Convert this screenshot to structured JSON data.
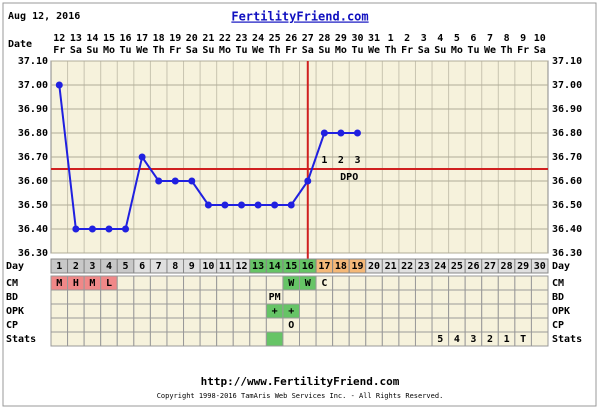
{
  "header": {
    "date": "Aug 12, 2016",
    "site": "FertilityFriend.com",
    "date_label": "Date"
  },
  "chart_data": {
    "type": "line",
    "categories": [
      "1",
      "2",
      "3",
      "4",
      "5",
      "6",
      "7",
      "8",
      "9",
      "10",
      "11",
      "12",
      "13",
      "14",
      "15",
      "16",
      "17",
      "18",
      "19",
      "20",
      "21",
      "22",
      "23",
      "24",
      "25",
      "26",
      "27",
      "28",
      "29",
      "30"
    ],
    "dates": [
      "12",
      "13",
      "14",
      "15",
      "16",
      "17",
      "18",
      "19",
      "20",
      "21",
      "22",
      "23",
      "24",
      "25",
      "26",
      "27",
      "28",
      "29",
      "30",
      "31",
      "1",
      "2",
      "3",
      "4",
      "5",
      "6",
      "7",
      "8",
      "9",
      "10"
    ],
    "weekdays": [
      "Fr",
      "Sa",
      "Su",
      "Mo",
      "Tu",
      "We",
      "Th",
      "Fr",
      "Sa",
      "Su",
      "Mo",
      "Tu",
      "We",
      "Th",
      "Fr",
      "Sa",
      "Su",
      "Mo",
      "Tu",
      "We",
      "Th",
      "Fr",
      "Sa",
      "Su",
      "Mo",
      "Tu",
      "We",
      "Th",
      "Fr",
      "Sa"
    ],
    "series": [
      {
        "name": "Temperature",
        "color": "#2020e0",
        "values": [
          37.0,
          36.4,
          36.4,
          36.4,
          36.4,
          36.7,
          36.6,
          36.6,
          36.6,
          36.5,
          36.5,
          36.5,
          36.5,
          36.5,
          36.5,
          36.6,
          36.8,
          36.8,
          36.8,
          null,
          null,
          null,
          null,
          null,
          null,
          null,
          null,
          null,
          null,
          null
        ]
      }
    ],
    "ylim": [
      36.3,
      37.1
    ],
    "yticks": [
      {
        "value": 36.3,
        "label": "36.30"
      },
      {
        "value": 36.4,
        "label": "36.40"
      },
      {
        "value": 36.5,
        "label": "36.50"
      },
      {
        "value": 36.6,
        "label": "36.60"
      },
      {
        "value": 36.7,
        "label": "36.70"
      },
      {
        "value": 36.8,
        "label": "36.80"
      },
      {
        "value": 36.9,
        "label": "36.90"
      },
      {
        "value": 37.0,
        "label": "37.00"
      },
      {
        "value": 37.1,
        "label": "37.10"
      }
    ],
    "grid": true,
    "coverline": 36.65,
    "coverline_color": "#d02020",
    "ovulation_day": 16,
    "dpo_start_day": 17,
    "dpo_labels": [
      "1",
      "2",
      "3"
    ],
    "dpo_title": "DPO",
    "day_label": "Day",
    "day_colors": [
      "#c8c8c8",
      "#c8c8c8",
      "#c8c8c8",
      "#c8c8c8",
      "#c8c8c8",
      "#e0e0e0",
      "#e0e0e0",
      "#e0e0e0",
      "#e0e0e0",
      "#e0e0e0",
      "#e0e0e0",
      "#e0e0e0",
      "#66c466",
      "#66c466",
      "#66c466",
      "#66c466",
      "#f4b878",
      "#f4b878",
      "#f4b878",
      "#e0e0e0",
      "#e0e0e0",
      "#e0e0e0",
      "#e0e0e0",
      "#e0e0e0",
      "#e0e0e0",
      "#e0e0e0",
      "#e0e0e0",
      "#e0e0e0",
      "#e0e0e0",
      "#e0e0e0"
    ],
    "rows": [
      {
        "label": "CM",
        "cells": [
          "M",
          "H",
          "M",
          "L",
          null,
          null,
          null,
          null,
          null,
          null,
          null,
          null,
          null,
          null,
          "W",
          "W",
          "C",
          null,
          null,
          null,
          null,
          null,
          null,
          null,
          null,
          null,
          null,
          null,
          null,
          null
        ],
        "colors": [
          "#f08888",
          "#f08888",
          "#f08888",
          "#f08888",
          null,
          null,
          null,
          null,
          null,
          null,
          null,
          null,
          null,
          null,
          "#66c466",
          "#66c466",
          null,
          null,
          null,
          null,
          null,
          null,
          null,
          null,
          null,
          null,
          null,
          null,
          null,
          null
        ]
      },
      {
        "label": "BD",
        "cells": [
          null,
          null,
          null,
          null,
          null,
          null,
          null,
          null,
          null,
          null,
          null,
          null,
          null,
          "PM",
          null,
          null,
          null,
          null,
          null,
          null,
          null,
          null,
          null,
          null,
          null,
          null,
          null,
          null,
          null,
          null
        ]
      },
      {
        "label": "OPK",
        "cells": [
          null,
          null,
          null,
          null,
          null,
          null,
          null,
          null,
          null,
          null,
          null,
          null,
          null,
          "+",
          "+",
          null,
          null,
          null,
          null,
          null,
          null,
          null,
          null,
          null,
          null,
          null,
          null,
          null,
          null,
          null
        ],
        "colors": [
          null,
          null,
          null,
          null,
          null,
          null,
          null,
          null,
          null,
          null,
          null,
          null,
          null,
          "#66c466",
          "#66c466",
          null,
          null,
          null,
          null,
          null,
          null,
          null,
          null,
          null,
          null,
          null,
          null,
          null,
          null,
          null
        ]
      },
      {
        "label": "CP",
        "cells": [
          null,
          null,
          null,
          null,
          null,
          null,
          null,
          null,
          null,
          null,
          null,
          null,
          null,
          null,
          "O",
          null,
          null,
          null,
          null,
          null,
          null,
          null,
          null,
          null,
          null,
          null,
          null,
          null,
          null,
          null
        ]
      },
      {
        "label": "Stats",
        "cells": [
          null,
          null,
          null,
          null,
          null,
          null,
          null,
          null,
          null,
          null,
          null,
          null,
          null,
          null,
          null,
          null,
          null,
          null,
          null,
          null,
          null,
          null,
          null,
          "5",
          "4",
          "3",
          "2",
          "1",
          "T",
          null
        ],
        "colors": [
          null,
          null,
          null,
          null,
          null,
          null,
          null,
          null,
          null,
          null,
          null,
          null,
          null,
          "#66c466",
          null,
          null,
          null,
          null,
          null,
          null,
          null,
          null,
          null,
          null,
          null,
          null,
          null,
          null,
          null,
          null
        ]
      }
    ]
  },
  "footer": {
    "url": "http://www.FertilityFriend.com",
    "copyright": "Copyright 1998-2016 TamAris Web Services Inc. - All Rights Reserved."
  }
}
